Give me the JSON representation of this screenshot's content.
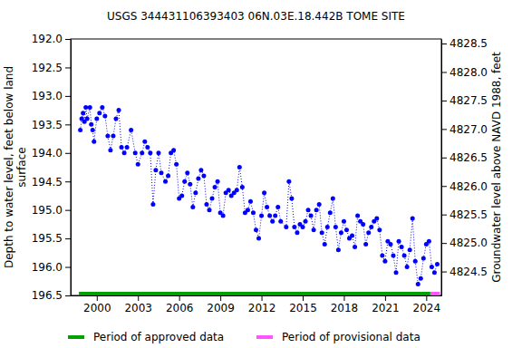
{
  "chart_data": {
    "type": "line",
    "title": "USGS 344431106393403 06N.03E.18.442B TOME SITE",
    "ylabel": [
      "Depth to water level, feet below land",
      "surface"
    ],
    "y2label": "Groundwater level above NAVD 1988, feet",
    "color": "#0000ff",
    "marker": "circle",
    "line_style": "dotted",
    "grid": false,
    "x": [
      1998.8,
      1998.9,
      1999.0,
      1999.1,
      1999.2,
      1999.3,
      1999.5,
      1999.6,
      1999.7,
      1999.8,
      2000.0,
      2000.2,
      2000.4,
      2000.6,
      2000.8,
      2001.0,
      2001.2,
      2001.4,
      2001.6,
      2001.8,
      2002.0,
      2002.2,
      2002.5,
      2002.8,
      2003.0,
      2003.3,
      2003.5,
      2003.7,
      2003.9,
      2004.1,
      2004.3,
      2004.5,
      2004.7,
      2005.0,
      2005.2,
      2005.4,
      2005.6,
      2005.8,
      2006.0,
      2006.2,
      2006.4,
      2006.6,
      2006.8,
      2007.0,
      2007.2,
      2007.4,
      2007.6,
      2007.8,
      2008.0,
      2008.2,
      2008.4,
      2008.6,
      2008.8,
      2009.0,
      2009.2,
      2009.4,
      2009.6,
      2009.8,
      2010.0,
      2010.2,
      2010.4,
      2010.6,
      2010.8,
      2011.0,
      2011.2,
      2011.4,
      2011.6,
      2011.8,
      2012.0,
      2012.2,
      2012.4,
      2012.6,
      2012.8,
      2013.0,
      2013.2,
      2013.4,
      2013.8,
      2014.0,
      2014.2,
      2014.4,
      2014.6,
      2014.8,
      2015.0,
      2015.2,
      2015.4,
      2015.6,
      2015.8,
      2016.0,
      2016.2,
      2016.4,
      2016.6,
      2016.8,
      2017.0,
      2017.2,
      2017.4,
      2017.6,
      2017.8,
      2018.0,
      2018.2,
      2018.4,
      2018.6,
      2018.8,
      2019.0,
      2019.2,
      2019.4,
      2019.6,
      2019.8,
      2020.0,
      2020.2,
      2020.4,
      2020.6,
      2020.8,
      2021.0,
      2021.2,
      2021.4,
      2021.6,
      2021.8,
      2022.0,
      2022.2,
      2022.4,
      2022.6,
      2022.8,
      2023.0,
      2023.2,
      2023.4,
      2023.6,
      2023.8,
      2024.0,
      2024.2,
      2024.4,
      2024.6,
      2024.8
    ],
    "values": [
      193.6,
      193.4,
      193.3,
      193.45,
      193.2,
      193.4,
      193.2,
      193.5,
      193.6,
      193.8,
      193.4,
      193.3,
      193.2,
      193.35,
      193.7,
      193.95,
      193.7,
      193.4,
      193.25,
      193.9,
      194.0,
      193.9,
      193.6,
      194.0,
      194.2,
      194.0,
      193.8,
      193.9,
      194.0,
      194.9,
      194.3,
      194.0,
      194.35,
      194.5,
      194.4,
      194.0,
      193.95,
      194.2,
      194.8,
      194.75,
      194.5,
      194.35,
      194.55,
      194.95,
      194.7,
      194.45,
      194.3,
      194.4,
      194.9,
      195.0,
      194.8,
      194.6,
      194.5,
      195.05,
      195.1,
      194.7,
      194.65,
      194.75,
      194.7,
      194.65,
      194.25,
      194.6,
      195.05,
      195.0,
      194.85,
      195.05,
      195.35,
      195.5,
      195.1,
      194.7,
      194.95,
      195.1,
      195.2,
      195.1,
      194.95,
      195.2,
      195.3,
      194.5,
      194.8,
      195.3,
      195.4,
      195.25,
      195.3,
      195.2,
      195.0,
      195.1,
      195.35,
      195.0,
      194.9,
      195.4,
      195.6,
      195.3,
      195.05,
      194.8,
      195.3,
      195.7,
      195.4,
      195.2,
      195.35,
      195.5,
      195.45,
      195.65,
      195.1,
      195.2,
      195.25,
      195.6,
      195.4,
      195.3,
      195.2,
      195.15,
      195.35,
      195.8,
      195.9,
      195.55,
      195.6,
      195.8,
      196.1,
      195.55,
      195.65,
      195.8,
      196.0,
      195.7,
      195.15,
      195.9,
      196.3,
      196.2,
      195.85,
      195.6,
      195.55,
      196.0,
      196.1,
      195.95
    ],
    "xlim": [
      1998.1,
      2025.1
    ],
    "xticks": [
      2000,
      2003,
      2006,
      2009,
      2012,
      2015,
      2018,
      2021,
      2024
    ],
    "ylim": [
      192.0,
      196.5
    ],
    "yticks": [
      {
        "value": 192.0,
        "label": "192.0"
      },
      192.5,
      {
        "value": 193.0,
        "label": "193.0"
      },
      193.5,
      {
        "value": 194.0,
        "label": "194.0"
      },
      194.5,
      {
        "value": 195.0,
        "label": "195.0"
      },
      195.5,
      {
        "value": 196.0,
        "label": "196.0"
      },
      196.5
    ],
    "y2lim": [
      4824.08,
      4828.58
    ],
    "y2ticks": [
      4824.5,
      {
        "value": 4825.0,
        "label": "4825.0"
      },
      4825.5,
      {
        "value": 4826.0,
        "label": "4826.0"
      },
      4826.5,
      {
        "value": 4827.0,
        "label": "4827.0"
      },
      4827.5,
      {
        "value": 4828.0,
        "label": "4828.0"
      },
      4828.5
    ],
    "periods": [
      {
        "name": "Period of approved data",
        "color": "#00a000",
        "start": 1998.7,
        "end": 2024.3
      },
      {
        "name": "Period of provisional data",
        "color": "#ff55ff",
        "start": 2024.3,
        "end": 2025.0
      }
    ]
  }
}
